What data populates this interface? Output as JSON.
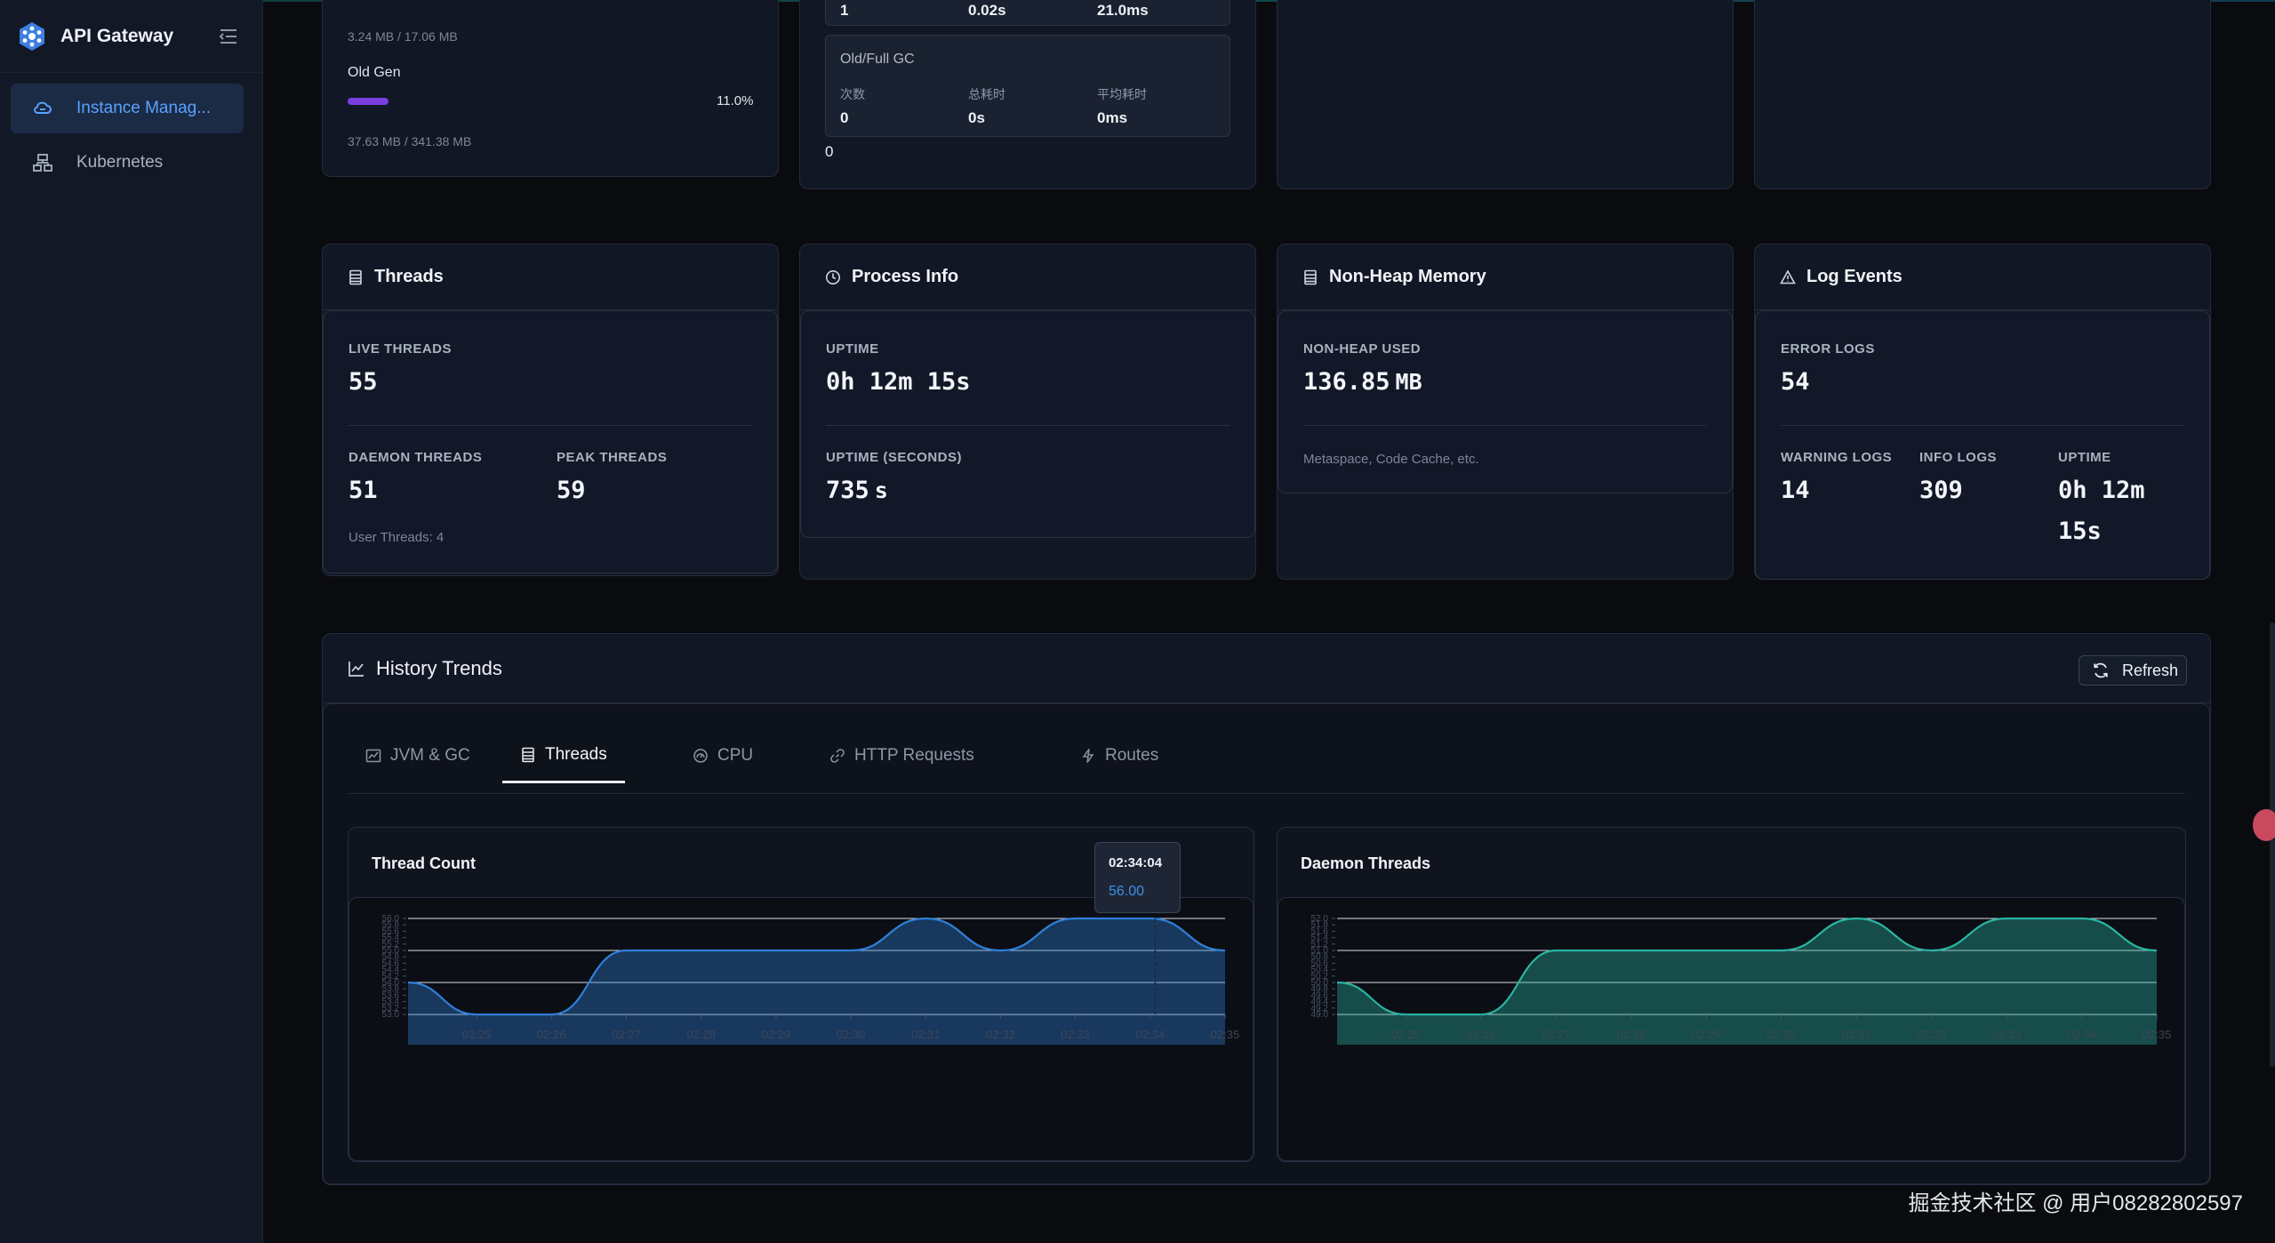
{
  "app": {
    "title": "API Gateway"
  },
  "sidebar": {
    "items": [
      {
        "label": "Instance Manag...",
        "icon": "cloud-icon",
        "active": true
      },
      {
        "label": "Kubernetes",
        "icon": "cluster-icon",
        "active": false
      }
    ]
  },
  "memory_card": {
    "young_usage": "3.24 MB / 17.06 MB",
    "old_gen_label": "Old Gen",
    "old_gen_percent": "11.0%",
    "old_gen_fraction": 0.11,
    "old_gen_usage": "37.63 MB / 341.38 MB"
  },
  "gc_card": {
    "young_row": {
      "count": "1",
      "total": "0.02s",
      "avg": "21.0ms"
    },
    "old_title": "Old/Full GC",
    "headers": {
      "count": "次数",
      "total": "总耗时",
      "avg": "平均耗时"
    },
    "old_row": {
      "count": "0",
      "total": "0s",
      "avg": "0ms"
    },
    "footer_value": "0"
  },
  "threads_card": {
    "title": "Threads",
    "live_label": "LIVE THREADS",
    "live_value": "55",
    "daemon_label": "DAEMON THREADS",
    "daemon_value": "51",
    "peak_label": "PEAK THREADS",
    "peak_value": "59",
    "note": "User Threads: 4"
  },
  "process_card": {
    "title": "Process Info",
    "uptime_label": "UPTIME",
    "uptime_value": "0h 12m 15s",
    "uptime_sec_label": "UPTIME (SECONDS)",
    "uptime_sec_value": "735",
    "uptime_sec_unit": "s"
  },
  "nonheap_card": {
    "title": "Non-Heap Memory",
    "used_label": "NON-HEAP USED",
    "used_value": "136.85",
    "used_unit": "MB",
    "note": "Metaspace, Code Cache, etc."
  },
  "log_card": {
    "title": "Log Events",
    "error_label": "ERROR LOGS",
    "error_value": "54",
    "warning_label": "WARNING LOGS",
    "warning_value": "14",
    "info_label": "INFO LOGS",
    "info_value": "309",
    "uptime_label": "UPTIME",
    "uptime_line1": "0h 12m",
    "uptime_line2": "15s"
  },
  "history": {
    "title": "History Trends",
    "refresh_label": "Refresh",
    "tabs": [
      {
        "label": "JVM & GC",
        "icon": "line-chart-icon"
      },
      {
        "label": "Threads",
        "icon": "threads-icon"
      },
      {
        "label": "CPU",
        "icon": "cpu-icon"
      },
      {
        "label": "HTTP Requests",
        "icon": "link-icon"
      },
      {
        "label": "Routes",
        "icon": "routes-icon"
      }
    ],
    "active_tab": "Threads"
  },
  "tooltip": {
    "time": "02:34:04",
    "value": "56.00"
  },
  "chart_data": [
    {
      "type": "area",
      "title": "Thread Count",
      "color": "#2f7fd8",
      "x": [
        "02:25",
        "02:26",
        "02:27",
        "02:28",
        "02:29",
        "02:30",
        "02:31",
        "02:32",
        "02:33",
        "02:34",
        "02:35"
      ],
      "ylim": [
        53.0,
        56.0
      ],
      "yticks": [
        "53.0",
        "53.2",
        "53.4",
        "53.6",
        "53.8",
        "54.0",
        "54.2",
        "54.4",
        "54.6",
        "54.8",
        "55.0",
        "55.2",
        "55.4",
        "55.6",
        "55.8",
        "56.0"
      ],
      "points": [
        {
          "t": "02:24:05",
          "v": 54.0
        },
        {
          "t": "02:25",
          "v": 53.0
        },
        {
          "t": "02:26",
          "v": 53.0
        },
        {
          "t": "02:27",
          "v": 55.0
        },
        {
          "t": "02:28",
          "v": 55.0
        },
        {
          "t": "02:29",
          "v": 55.0
        },
        {
          "t": "02:30",
          "v": 55.0
        },
        {
          "t": "02:31",
          "v": 56.0
        },
        {
          "t": "02:32",
          "v": 55.0
        },
        {
          "t": "02:33",
          "v": 56.0
        },
        {
          "t": "02:34",
          "v": 56.0
        },
        {
          "t": "02:35",
          "v": 55.0
        }
      ]
    },
    {
      "type": "area",
      "title": "Daemon Threads",
      "color": "#2bb3a3",
      "x": [
        "02:25",
        "02:26",
        "02:27",
        "02:28",
        "02:29",
        "02:30",
        "02:31",
        "02:32",
        "02:33",
        "02:34",
        "02:35"
      ],
      "ylim": [
        49.0,
        52.0
      ],
      "yticks": [
        "49.0",
        "49.2",
        "49.4",
        "49.6",
        "49.8",
        "50.0",
        "50.2",
        "50.4",
        "50.6",
        "50.8",
        "51.0",
        "51.2",
        "51.4",
        "51.6",
        "51.8",
        "52.0"
      ],
      "points": [
        {
          "t": "02:24:05",
          "v": 50.0
        },
        {
          "t": "02:25",
          "v": 49.0
        },
        {
          "t": "02:26",
          "v": 49.0
        },
        {
          "t": "02:27",
          "v": 51.0
        },
        {
          "t": "02:28",
          "v": 51.0
        },
        {
          "t": "02:29",
          "v": 51.0
        },
        {
          "t": "02:30",
          "v": 51.0
        },
        {
          "t": "02:31",
          "v": 52.0
        },
        {
          "t": "02:32",
          "v": 51.0
        },
        {
          "t": "02:33",
          "v": 52.0
        },
        {
          "t": "02:34",
          "v": 52.0
        },
        {
          "t": "02:35",
          "v": 51.0
        }
      ]
    }
  ],
  "watermark": "掘金技术社区 @ 用户08282802597"
}
